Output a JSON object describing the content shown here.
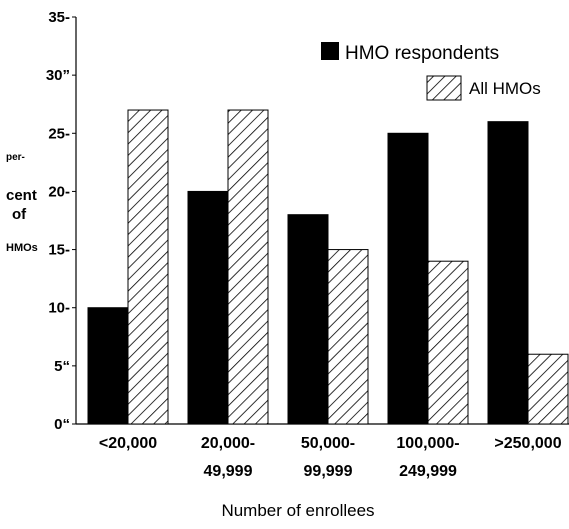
{
  "chart_data": {
    "type": "bar",
    "categories": [
      [
        "<20,000"
      ],
      [
        "20,000-",
        "49,999"
      ],
      [
        "50,000-",
        "99,999"
      ],
      [
        "100,000-",
        "249,999"
      ],
      [
        ">250,000"
      ]
    ],
    "series": [
      {
        "name": "HMO respondents",
        "values": [
          10,
          20,
          18,
          25,
          26
        ],
        "fill": "solid",
        "color": "#000000"
      },
      {
        "name": "All HMOs",
        "values": [
          27,
          27,
          15,
          14,
          6
        ],
        "fill": "hatched",
        "color": "#000000"
      }
    ],
    "ylim": [
      0,
      35
    ],
    "yticks": [
      0,
      5,
      10,
      15,
      20,
      25,
      30,
      35
    ],
    "ytick_labels": [
      "0“",
      "5“",
      "10-",
      "15-",
      "20-",
      "25-",
      "30”",
      "35-"
    ],
    "ylabel": [
      "per-",
      "cent",
      "of",
      "HMOs"
    ],
    "xlabel": "Number of enrollees",
    "legend_position": "top-right",
    "grid": false
  }
}
